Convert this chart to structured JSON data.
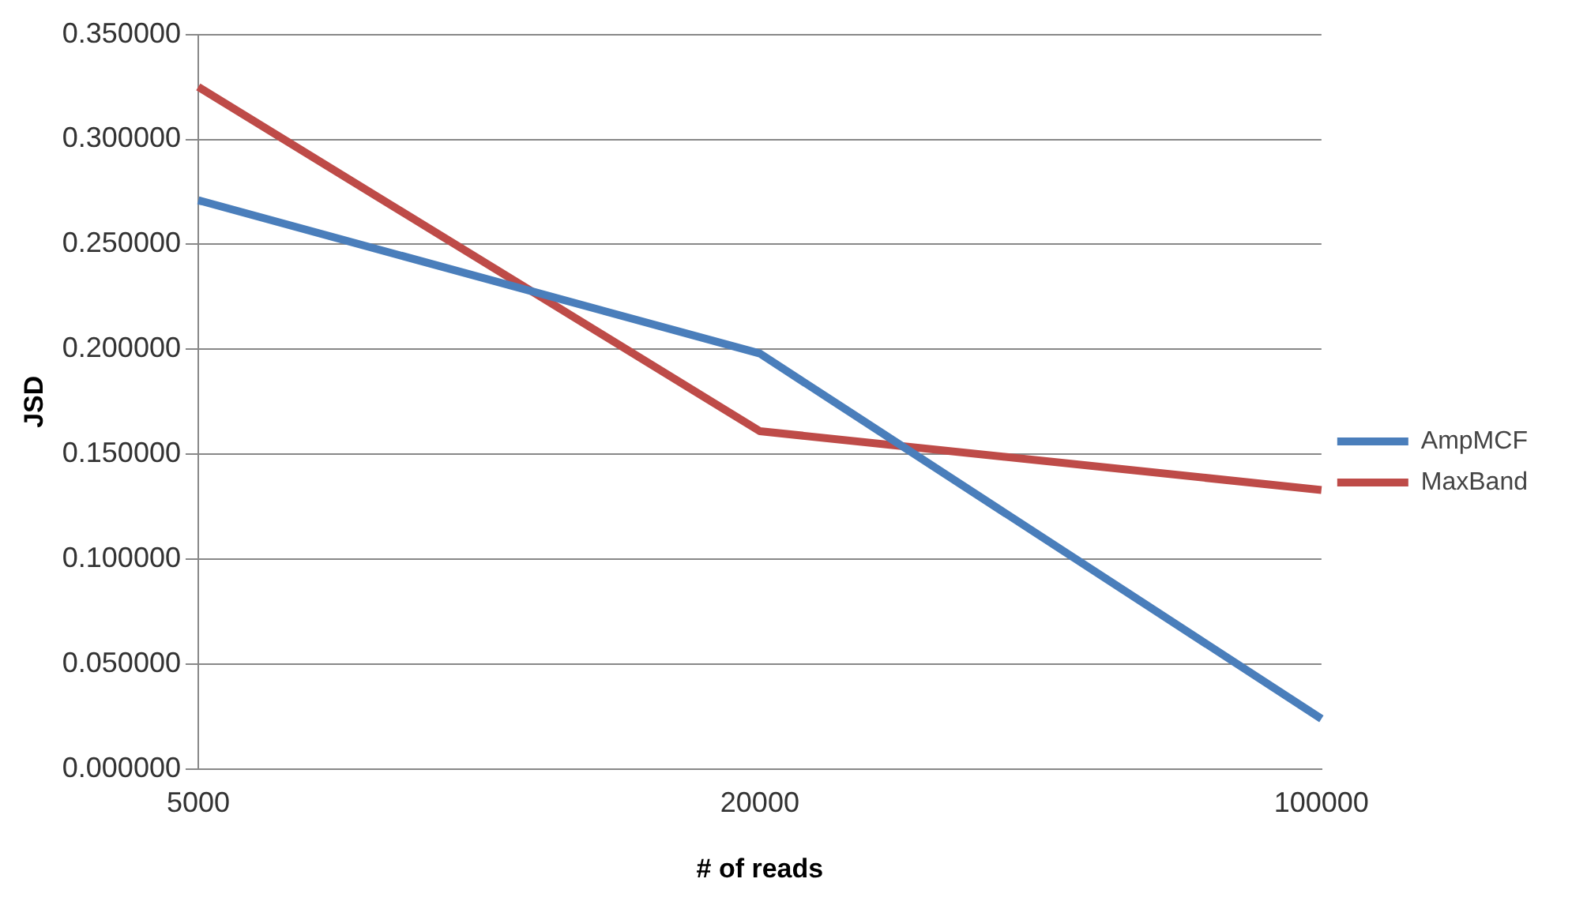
{
  "chart_data": {
    "type": "line",
    "xlabel": "# of reads",
    "ylabel": "JSD",
    "categories": [
      "5000",
      "20000",
      "100000"
    ],
    "series": [
      {
        "name": "AmpMCF",
        "color": "#4a7ebb",
        "values": [
          0.271,
          0.198,
          0.024
        ]
      },
      {
        "name": "MaxBand",
        "color": "#be4b48",
        "values": [
          0.325,
          0.161,
          0.133
        ]
      }
    ],
    "ylim": [
      0,
      0.35
    ],
    "yticks": [
      {
        "value": 0,
        "label": "0.000000"
      },
      {
        "value": 0.05,
        "label": "0.050000"
      },
      {
        "value": 0.1,
        "label": "0.100000"
      },
      {
        "value": 0.15,
        "label": "0.150000"
      },
      {
        "value": 0.2,
        "label": "0.200000"
      },
      {
        "value": 0.25,
        "label": "0.250000"
      },
      {
        "value": 0.3,
        "label": "0.300000"
      },
      {
        "value": 0.35,
        "label": "0.350000"
      }
    ],
    "grid": "y",
    "legend": "right",
    "marker": "none",
    "line_style": "solid"
  }
}
